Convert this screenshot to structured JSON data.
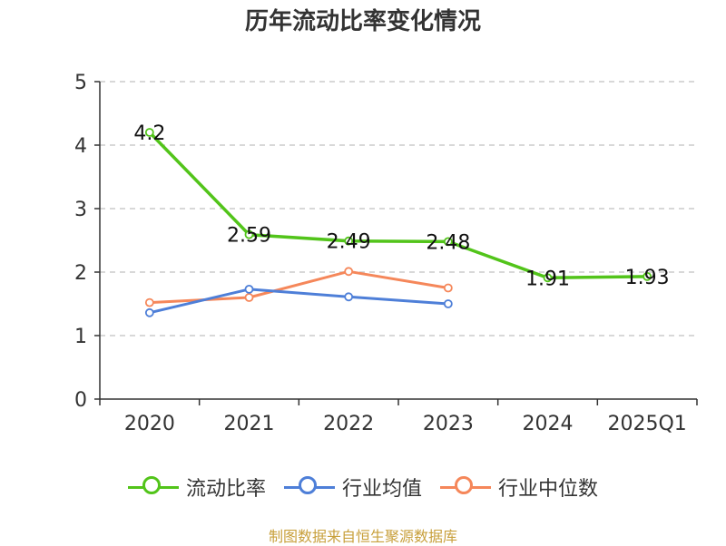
{
  "chart_data": {
    "type": "line",
    "title": "历年流动比率变化情况",
    "categories": [
      "2020",
      "2021",
      "2022",
      "2023",
      "2024",
      "2025Q1"
    ],
    "ylim": [
      0,
      5
    ],
    "yticks": [
      0,
      1,
      2,
      3,
      4,
      5
    ],
    "grid": true,
    "legend_position": "bottom",
    "series": [
      {
        "name": "流动比率",
        "color": "#52c41a",
        "values": [
          4.2,
          2.59,
          2.49,
          2.48,
          1.91,
          1.93
        ],
        "labels": [
          "4.2",
          "2.59",
          "2.49",
          "2.48",
          "1.91",
          "1.93"
        ],
        "show_labels": true
      },
      {
        "name": "行业均值",
        "color": "#4e7fd8",
        "values": [
          1.36,
          1.73,
          1.61,
          1.5,
          null,
          null
        ],
        "show_labels": false
      },
      {
        "name": "行业中位数",
        "color": "#f5875a",
        "values": [
          1.52,
          1.6,
          2.01,
          1.75,
          null,
          null
        ],
        "show_labels": false
      }
    ]
  },
  "source_note": "制图数据来自恒生聚源数据库"
}
